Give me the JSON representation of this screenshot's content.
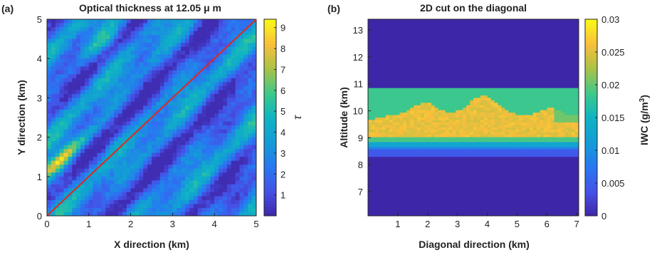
{
  "chart_data": [
    {
      "type": "heatmap",
      "panel_label": "(a)",
      "title": "Optical thickness at 12.05 μ m",
      "xlabel": "X direction (km)",
      "ylabel": "Y direction (km)",
      "xlim": [
        0,
        5
      ],
      "ylim": [
        0,
        5
      ],
      "xticks": [
        "0",
        "1",
        "2",
        "3",
        "4",
        "5"
      ],
      "yticks": [
        "0",
        "1",
        "2",
        "3",
        "4",
        "5"
      ],
      "colorbar": {
        "label": "τ",
        "range": [
          0,
          9.4
        ],
        "ticks": [
          "1",
          "2",
          "3",
          "4",
          "5",
          "6",
          "7",
          "8",
          "9"
        ]
      },
      "overlay_line": {
        "color": "#e0281e",
        "from": [
          0,
          0
        ],
        "to": [
          5,
          5
        ]
      }
    },
    {
      "type": "heatmap",
      "panel_label": "(b)",
      "title": "2D cut on the diagonal",
      "xlabel": "Diagonal direction (km)",
      "ylabel": "Altitude (km)",
      "xlim": [
        0,
        7.07
      ],
      "ylim": [
        6.1,
        13.4
      ],
      "xticks": [
        "1",
        "2",
        "3",
        "4",
        "5",
        "6",
        "7"
      ],
      "yticks": [
        "7",
        "8",
        "9",
        "10",
        "11",
        "12",
        "13"
      ],
      "colorbar": {
        "label": "IWC (g/m",
        "label_sup": "3",
        "label_end": ")",
        "range": [
          0,
          0.03
        ],
        "ticks": [
          "0",
          "0.005",
          "0.01",
          "0.015",
          "0.02",
          "0.025",
          "0.03"
        ]
      }
    }
  ]
}
